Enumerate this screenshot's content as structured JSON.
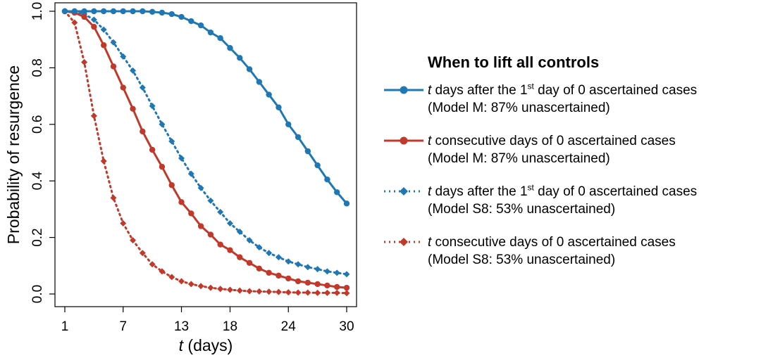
{
  "chart_data": {
    "type": "line",
    "title": "",
    "xlabel_var": "t",
    "xlabel_rest": " (days)",
    "ylabel": "Probability of resurgence",
    "xlim": [
      1,
      30
    ],
    "ylim": [
      0.0,
      1.0
    ],
    "x_ticks": [
      1,
      7,
      13,
      18,
      24,
      30
    ],
    "y_ticks": [
      "0.0",
      "0.2",
      "0.4",
      "0.6",
      "0.8",
      "1.0"
    ],
    "grid": false,
    "x": [
      1,
      2,
      3,
      4,
      5,
      6,
      7,
      8,
      9,
      10,
      11,
      12,
      13,
      14,
      15,
      16,
      17,
      18,
      19,
      20,
      21,
      22,
      23,
      24,
      25,
      26,
      27,
      28,
      29,
      30
    ],
    "series": [
      {
        "name": "t days after the 1st day of 0 ascertained cases (Model M: 87% unascertained)",
        "color": "#1f77b4",
        "style": "solid",
        "marker": "circle",
        "values": [
          1.0,
          1.0,
          1.0,
          1.0,
          1.0,
          1.0,
          1.0,
          1.0,
          1.0,
          0.998,
          0.995,
          0.99,
          0.98,
          0.965,
          0.95,
          0.925,
          0.905,
          0.87,
          0.835,
          0.795,
          0.75,
          0.705,
          0.66,
          0.6,
          0.555,
          0.505,
          0.455,
          0.405,
          0.36,
          0.32
        ]
      },
      {
        "name": "t consecutive days of 0 ascertained cases (Model M: 87% unascertained)",
        "color": "#c1392b",
        "style": "solid",
        "marker": "circle",
        "values": [
          1.0,
          0.995,
          0.98,
          0.945,
          0.88,
          0.805,
          0.73,
          0.655,
          0.575,
          0.51,
          0.45,
          0.385,
          0.325,
          0.285,
          0.24,
          0.21,
          0.175,
          0.155,
          0.13,
          0.11,
          0.09,
          0.075,
          0.065,
          0.055,
          0.045,
          0.04,
          0.035,
          0.03,
          0.025,
          0.022
        ]
      },
      {
        "name": "t days after the 1st day of 0 ascertained cases (Model S8: 53% unascertained)",
        "color": "#1f77b4",
        "style": "dotted",
        "marker": "diamond",
        "values": [
          1.0,
          1.0,
          0.99,
          0.97,
          0.935,
          0.89,
          0.84,
          0.79,
          0.73,
          0.665,
          0.6,
          0.54,
          0.48,
          0.425,
          0.375,
          0.33,
          0.29,
          0.25,
          0.22,
          0.19,
          0.165,
          0.145,
          0.13,
          0.115,
          0.105,
          0.095,
          0.088,
          0.08,
          0.075,
          0.07
        ]
      },
      {
        "name": "t consecutive days of 0 ascertained cases (Model S8: 53% unascertained)",
        "color": "#c1392b",
        "style": "dotted",
        "marker": "diamond",
        "values": [
          1.0,
          0.96,
          0.82,
          0.63,
          0.47,
          0.34,
          0.25,
          0.19,
          0.145,
          0.105,
          0.08,
          0.06,
          0.045,
          0.035,
          0.028,
          0.022,
          0.018,
          0.015,
          0.012,
          0.01,
          0.009,
          0.008,
          0.007,
          0.006,
          0.005,
          0.005,
          0.004,
          0.004,
          0.004,
          0.003
        ]
      }
    ]
  },
  "legend": {
    "title": "When to lift all controls",
    "entries": [
      {
        "var": "t",
        "pre": " days after the 1",
        "sup": "st",
        "post": " day of 0 ascertained cases",
        "line2": "(Model M: 87% unascertained)"
      },
      {
        "var": "t",
        "pre": " consecutive days of 0 ascertained cases",
        "sup": "",
        "post": "",
        "line2": "(Model M: 87% unascertained)"
      },
      {
        "var": "t",
        "pre": " days after the 1",
        "sup": "st",
        "post": " day of 0 ascertained cases",
        "line2": "(Model S8: 53% unascertained)"
      },
      {
        "var": "t",
        "pre": " consecutive days of 0 ascertained cases",
        "sup": "",
        "post": "",
        "line2": "(Model S8: 53% unascertained)"
      }
    ]
  }
}
